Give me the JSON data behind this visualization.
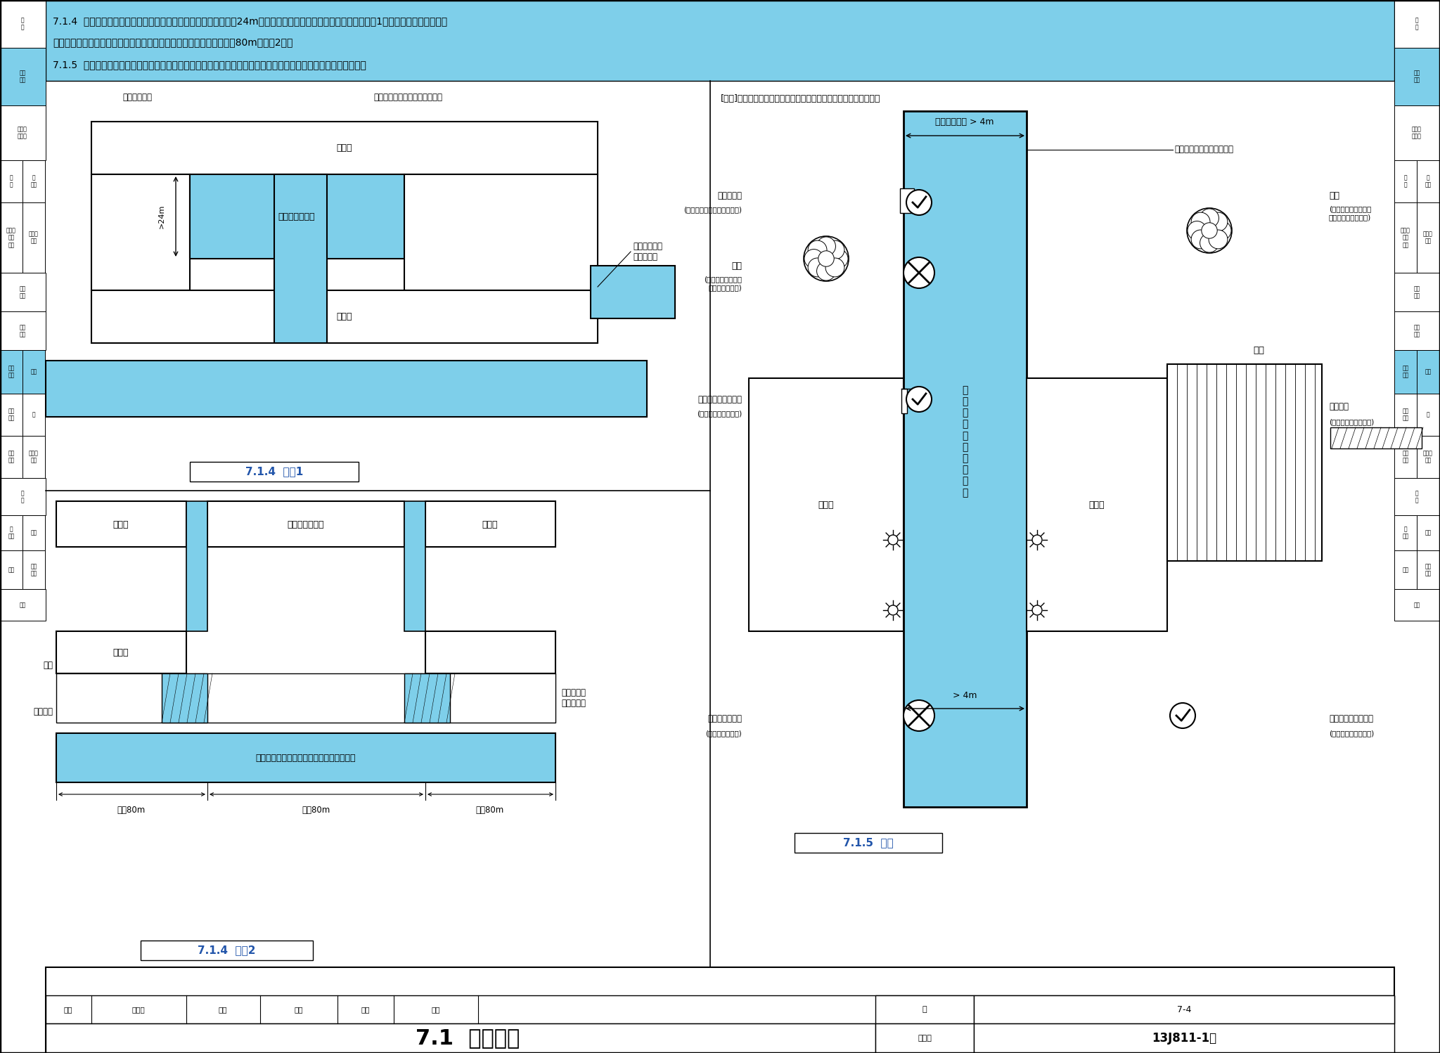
{
  "bg": "#ffffff",
  "lb": "#7ECFEA",
  "title": "7.1  消防车道",
  "atlas": "13J811-1改",
  "page": "7-4",
  "h1": "7.1.4  有封闭内院或天井的建筑物，当内院或天井的短边长度大于24m时，宜设置进入内院或天井的消防车道『图示1』；当该建筑物沿街时，",
  "h2": "应设置连通街道和内院的人行通道（可利用楼梯间），其间距不宜大于80m『图示2』。",
  "h3": "7.1.5  在穿过建筑物或进入建筑物内院的消防车道两侧，不应设置影响消防车通行或人员安全疏散的设施。【图示】"
}
